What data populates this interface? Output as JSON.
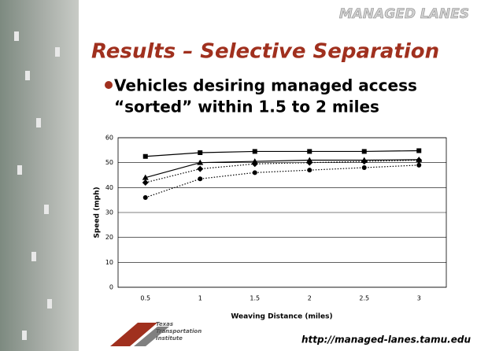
{
  "slide": {
    "header": "MANAGED LANES",
    "title": "Results – Selective Separation",
    "bullet": [
      "Vehicles desiring managed access",
      "“sorted” within 1.5 to 2 miles"
    ],
    "logo": [
      "Texas",
      "Transportation",
      "Institute"
    ],
    "url": "http://managed-lanes.tamu.edu"
  },
  "chart_data": {
    "type": "line",
    "x_label": "Weaving Distance (miles)",
    "y_label": "Speed (mph)",
    "categories": [
      "0.5",
      "1",
      "1.5",
      "2",
      "2.5",
      "3"
    ],
    "series": [
      {
        "color": "#000000",
        "marker": "square",
        "dash": "solid",
        "values": [
          52.5,
          54,
          54.5,
          54.5,
          54.5,
          54.8
        ]
      },
      {
        "color": "#000000",
        "marker": "triangle",
        "dash": "solid",
        "values": [
          44,
          50,
          50.5,
          51,
          51,
          51.2
        ]
      },
      {
        "color": "#000000",
        "marker": "diamond",
        "dash": "dotted",
        "values": [
          42,
          47.5,
          49.5,
          50,
          50.5,
          51
        ]
      },
      {
        "color": "#000000",
        "marker": "circle",
        "dash": "dotted",
        "values": [
          36,
          43.5,
          46,
          47,
          48,
          49
        ]
      }
    ],
    "ylim": [
      0,
      60
    ],
    "yticks": [
      0,
      10,
      20,
      30,
      40,
      50,
      60
    ],
    "grid": true
  }
}
